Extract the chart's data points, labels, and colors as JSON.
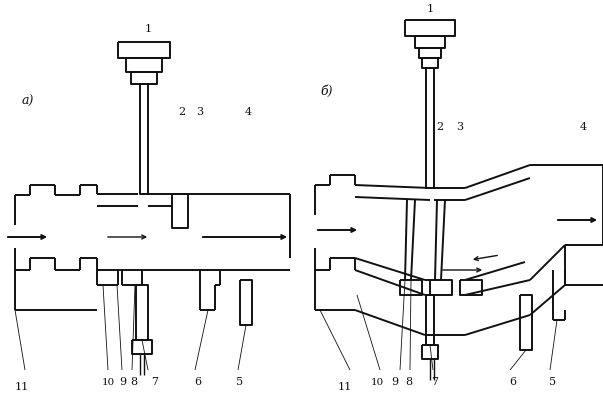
{
  "background_color": "#ffffff",
  "line_color": "#111111",
  "figure_width": 6.03,
  "figure_height": 4.15,
  "dpi": 100
}
